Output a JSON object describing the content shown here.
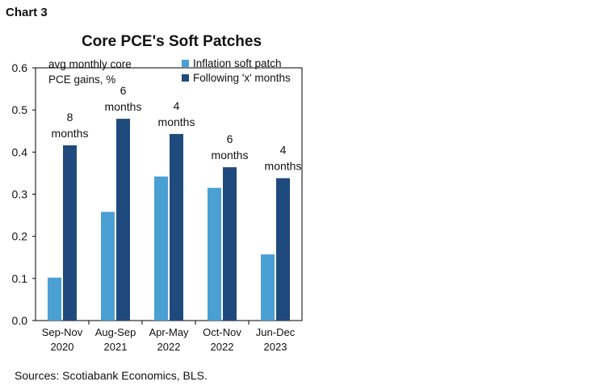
{
  "header": {
    "chart_label": "Chart 3"
  },
  "footer": {
    "source": "Sources: Scotiabank Economics, BLS."
  },
  "chart_data": {
    "type": "bar",
    "title": "Core PCE's Soft Patches",
    "ylabel_lines": [
      "avg monthly core",
      "PCE gains, %"
    ],
    "ylim": [
      0,
      0.6
    ],
    "yticks": [
      "0.0",
      "0.1",
      "0.2",
      "0.3",
      "0.4",
      "0.5",
      "0.6"
    ],
    "ytick_values": [
      0,
      0.1,
      0.2,
      0.3,
      0.4,
      0.5,
      0.6
    ],
    "grid": false,
    "legend_position": "top-right",
    "categories": [
      [
        "Sep-Nov",
        "2020"
      ],
      [
        "Aug-Sep",
        "2021"
      ],
      [
        "Apr-May",
        "2022"
      ],
      [
        "Oct-Nov",
        "2022"
      ],
      [
        "Jun-Dec",
        "2023"
      ]
    ],
    "series": [
      {
        "name": "Inflation soft patch",
        "color": "#4a9fd3",
        "values": [
          0.102,
          0.258,
          0.342,
          0.315,
          0.157
        ]
      },
      {
        "name": "Following 'x' months",
        "color": "#1f4a7e",
        "values": [
          0.416,
          0.479,
          0.443,
          0.364,
          0.338
        ]
      }
    ],
    "annotations": [
      [
        "8",
        "months"
      ],
      [
        "6",
        "months"
      ],
      [
        "4",
        "months"
      ],
      [
        "6",
        "months"
      ],
      [
        "4",
        "months"
      ]
    ]
  }
}
